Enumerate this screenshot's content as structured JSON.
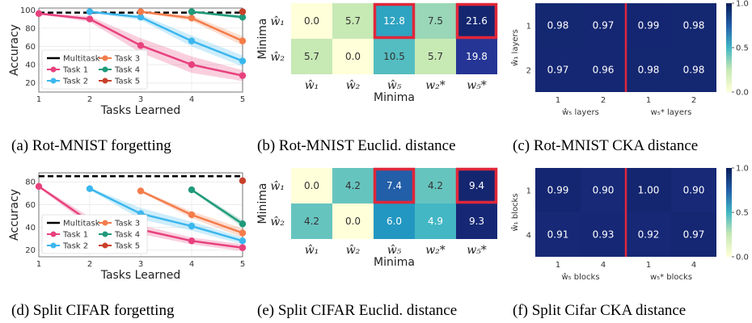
{
  "chart_data": [
    {
      "type": "line",
      "panel": "a",
      "xlabel": "Tasks Learned",
      "ylabel": "Accuracy",
      "xlim": [
        1,
        5
      ],
      "ylim": [
        10,
        102
      ],
      "yticks": [
        20,
        40,
        60,
        80,
        100
      ],
      "xticks": [
        1,
        2,
        3,
        4,
        5
      ],
      "multitask": {
        "name": "Multitask",
        "value": 97
      },
      "legend": [
        "Multitask",
        "Task 1",
        "Task 2",
        "Task 3",
        "Task 4",
        "Task 5"
      ],
      "series": [
        {
          "name": "Task 1",
          "color": "#e8417d",
          "x": [
            1,
            2,
            3,
            4,
            5
          ],
          "values": [
            96,
            90,
            61,
            40,
            28
          ],
          "band": [
            1,
            3,
            8,
            9,
            6
          ]
        },
        {
          "name": "Task 2",
          "color": "#3bb7ee",
          "x": [
            2,
            3,
            4,
            5
          ],
          "values": [
            98,
            92,
            66,
            44
          ],
          "band": [
            1,
            3,
            6,
            6
          ]
        },
        {
          "name": "Task 3",
          "color": "#f47c4a",
          "x": [
            3,
            4,
            5
          ],
          "values": [
            98,
            91,
            66
          ],
          "band": [
            1,
            3,
            5
          ]
        },
        {
          "name": "Task 4",
          "color": "#1f9a7a",
          "x": [
            4,
            5
          ],
          "values": [
            98,
            92
          ],
          "band": [
            1,
            2
          ]
        },
        {
          "name": "Task 5",
          "color": "#c8402a",
          "x": [
            5
          ],
          "values": [
            98
          ],
          "band": [
            0
          ]
        }
      ],
      "caption": "(a) Rot-MNIST forgetting"
    },
    {
      "type": "heatmap",
      "panel": "b",
      "ylabel": "Minima",
      "xlabel": "Minima",
      "rows": [
        "ŵ₁",
        "ŵ₂"
      ],
      "cols": [
        "ŵ₁",
        "ŵ₂",
        "ŵ₅",
        "w₂*",
        "w₅*"
      ],
      "col_colors": [
        "#333333",
        "#3333cc",
        "#dd2222",
        "#3333cc",
        "#dd2222"
      ],
      "values": [
        [
          0.0,
          5.7,
          12.8,
          7.5,
          21.6
        ],
        [
          5.7,
          0.0,
          10.5,
          5.7,
          19.8
        ]
      ],
      "labels": [
        [
          "0.0",
          "5.7",
          "12.8",
          "7.5",
          "21.6"
        ],
        [
          "5.7",
          "0.0",
          "10.5",
          "5.7",
          "19.8"
        ]
      ],
      "highlight": [
        [
          0,
          2
        ],
        [
          0,
          4
        ]
      ],
      "caption": "(b) Rot-MNIST Euclid. distance"
    },
    {
      "type": "heatmap",
      "panel": "c",
      "ylabel": "ŵ₁ layers",
      "rows": [
        "1",
        "2"
      ],
      "cols": [
        "1",
        "2",
        "1",
        "2"
      ],
      "group_labels": [
        "ŵ₅ layers",
        "w₅* layers"
      ],
      "values": [
        [
          0.98,
          0.97,
          0.99,
          0.98
        ],
        [
          0.97,
          0.96,
          0.98,
          0.98
        ]
      ],
      "labels": [
        [
          "0.98",
          "0.97",
          "0.99",
          "0.98"
        ],
        [
          "0.97",
          "0.96",
          "0.98",
          "0.98"
        ]
      ],
      "colorbar_ticks": [
        "1.0",
        "0.5",
        "0.0"
      ],
      "caption": "(c) Rot-MNIST CKA distance"
    },
    {
      "type": "line",
      "panel": "d",
      "xlabel": "Tasks Learned",
      "ylabel": "Accuracy",
      "xlim": [
        1,
        5
      ],
      "ylim": [
        14,
        88
      ],
      "yticks": [
        20,
        40,
        60,
        80
      ],
      "xticks": [
        1,
        2,
        3,
        4,
        5
      ],
      "multitask": {
        "name": "Multitask",
        "value": 85
      },
      "legend": [
        "Multitask",
        "Task 1",
        "Task 2",
        "Task 3",
        "Task 4",
        "Task 5"
      ],
      "series": [
        {
          "name": "Task 1",
          "color": "#e8417d",
          "x": [
            1,
            2,
            3,
            4,
            5
          ],
          "values": [
            76,
            45,
            38,
            28,
            22
          ],
          "band": [
            1,
            4,
            4,
            3,
            3
          ]
        },
        {
          "name": "Task 2",
          "color": "#3bb7ee",
          "x": [
            2,
            3,
            4,
            5
          ],
          "values": [
            74,
            52,
            41,
            28
          ],
          "band": [
            1,
            5,
            4,
            3
          ]
        },
        {
          "name": "Task 3",
          "color": "#f47c4a",
          "x": [
            3,
            4,
            5
          ],
          "values": [
            72,
            51,
            35
          ],
          "band": [
            1,
            3,
            4
          ]
        },
        {
          "name": "Task 4",
          "color": "#1f9a7a",
          "x": [
            4,
            5
          ],
          "values": [
            73,
            43
          ],
          "band": [
            1,
            3
          ]
        },
        {
          "name": "Task 5",
          "color": "#c8402a",
          "x": [
            5
          ],
          "values": [
            81
          ],
          "band": [
            0
          ]
        }
      ],
      "caption": "(d) Split CIFAR forgetting"
    },
    {
      "type": "heatmap",
      "panel": "e",
      "ylabel": "Minima",
      "xlabel": "Minima",
      "rows": [
        "ŵ₁",
        "ŵ₂"
      ],
      "cols": [
        "ŵ₁",
        "ŵ₂",
        "ŵ₅",
        "w₂*",
        "w₅*"
      ],
      "col_colors": [
        "#333333",
        "#3333cc",
        "#dd2222",
        "#3333cc",
        "#dd2222"
      ],
      "values": [
        [
          0.0,
          4.2,
          7.4,
          4.2,
          9.4
        ],
        [
          4.2,
          0.0,
          6.0,
          4.9,
          9.3
        ]
      ],
      "labels": [
        [
          "0.0",
          "4.2",
          "7.4",
          "4.2",
          "9.4"
        ],
        [
          "4.2",
          "0.0",
          "6.0",
          "4.9",
          "9.3"
        ]
      ],
      "highlight": [
        [
          0,
          2
        ],
        [
          0,
          4
        ]
      ],
      "caption": "(e) Split CIFAR Euclid. distance"
    },
    {
      "type": "heatmap",
      "panel": "f",
      "ylabel": "ŵ₁ blocks",
      "rows": [
        "1",
        "4"
      ],
      "cols": [
        "1",
        "4",
        "1",
        "4"
      ],
      "group_labels": [
        "ŵ₅ blocks",
        "w₅* blocks"
      ],
      "values": [
        [
          0.99,
          0.9,
          1.0,
          0.9
        ],
        [
          0.91,
          0.93,
          0.92,
          0.97
        ]
      ],
      "labels": [
        [
          "0.99",
          "0.90",
          "1.00",
          "0.90"
        ],
        [
          "0.91",
          "0.93",
          "0.92",
          "0.97"
        ]
      ],
      "colorbar_ticks": [
        "1.0",
        "0.5",
        "0.0"
      ],
      "caption": "(f) Split Cifar CKA distance"
    }
  ]
}
